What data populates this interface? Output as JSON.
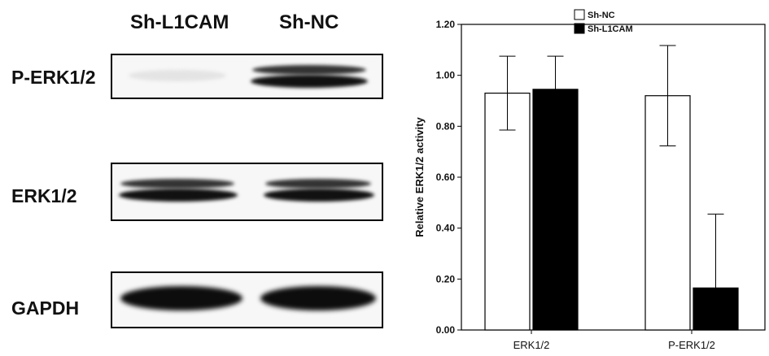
{
  "blot": {
    "lane_labels": [
      "Sh-L1CAM",
      "Sh-NC"
    ],
    "rows": [
      {
        "label": "P-ERK1/2"
      },
      {
        "label": "ERK1/2"
      },
      {
        "label": "GAPDH"
      }
    ]
  },
  "chart_data": {
    "type": "bar",
    "categories": [
      "ERK1/2",
      "P-ERK1/2"
    ],
    "series": [
      {
        "name": "Sh-NC",
        "color": "#ffffff",
        "values": [
          0.93,
          0.92
        ],
        "error": [
          0.145,
          0.197
        ]
      },
      {
        "name": "Sh-L1CAM",
        "color": "#000000",
        "values": [
          0.945,
          0.165
        ],
        "error": [
          0.13,
          0.29
        ]
      }
    ],
    "title": "",
    "xlabel": "",
    "ylabel": "Relative ERK1/2 activity",
    "ylim": [
      0,
      1.2
    ],
    "yticks": [
      "0.00",
      "0.20",
      "0.40",
      "0.60",
      "0.80",
      "1.00",
      "1.20"
    ],
    "legend_position": "top-center",
    "grid": false
  }
}
